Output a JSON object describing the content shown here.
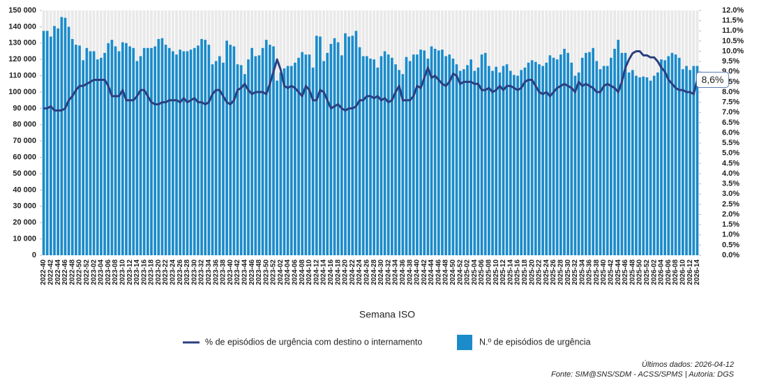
{
  "chart_data": {
    "type": "bar-line",
    "x_label": "Semana ISO",
    "footnotes": [
      "Últimos dados: 2026-04-12",
      "Fonte: SIM@SNS/SDM - ACSS/SPMS | Autoria: DGS"
    ],
    "categories": [
      "2022-40",
      null,
      "2022-42",
      null,
      "2022-44",
      null,
      "2022-46",
      null,
      "2022-48",
      null,
      "2022-50",
      null,
      "2022-52",
      null,
      "2023-02",
      null,
      "2023-04",
      null,
      "2023-06",
      null,
      "2023-08",
      null,
      "2023-10",
      null,
      "2023-12",
      null,
      "2023-14",
      null,
      "2023-16",
      null,
      "2023-18",
      null,
      "2023-20",
      null,
      "2023-22",
      null,
      "2023-24",
      null,
      "2023-26",
      null,
      "2023-28",
      null,
      "2023-30",
      null,
      "2023-32",
      null,
      "2023-34",
      null,
      "2023-36",
      null,
      "2023-38",
      null,
      "2023-40",
      null,
      "2023-42",
      null,
      "2023-44",
      null,
      "2023-46",
      null,
      "2023-48",
      null,
      "2023-50",
      null,
      "2023-52",
      null,
      "2024-02",
      null,
      "2024-04",
      null,
      "2024-06",
      null,
      "2024-08",
      null,
      "2024-10",
      null,
      "2024-12",
      null,
      "2024-14",
      null,
      "2024-16",
      null,
      "2024-18",
      null,
      "2024-20",
      null,
      "2024-22",
      null,
      "2024-24",
      null,
      "2024-26",
      null,
      "2024-28",
      null,
      "2024-30",
      null,
      "2024-32",
      null,
      "2024-34",
      null,
      "2024-36",
      null,
      "2024-38",
      null,
      "2024-40",
      null,
      "2024-42",
      null,
      "2024-44",
      null,
      "2024-46",
      null,
      "2024-48",
      null,
      "2024-50",
      null,
      "2024-52",
      null,
      "2025-02",
      null,
      "2025-04",
      null,
      "2025-06",
      null,
      "2025-08",
      null,
      "2025-10",
      null,
      "2025-12",
      null,
      "2025-14",
      null,
      "2025-16",
      null,
      "2025-18",
      null,
      "2025-20",
      null,
      "2025-22",
      null,
      "2025-24",
      null,
      "2025-26",
      null,
      "2025-28",
      null,
      "2025-30",
      null,
      "2025-32",
      null,
      "2025-34",
      null,
      "2025-36",
      null,
      "2025-38",
      null,
      "2025-40",
      null,
      "2025-42",
      null,
      "2025-44",
      null,
      "2025-46",
      null,
      "2025-48",
      null,
      "2025-50",
      null,
      "2025-52",
      null,
      "2026-02",
      null,
      "2026-04",
      null,
      "2026-06",
      null,
      "2026-08",
      null,
      "2026-10",
      null,
      "2026-12",
      null,
      "2026-14"
    ],
    "series": [
      {
        "name": "% de episódios de urgência com destino o internamento",
        "type": "line",
        "axis": "y2",
        "color": "#2b3f7f",
        "values": [
          7.2,
          7.2,
          7.3,
          7.1,
          7.1,
          7.1,
          7.2,
          7.6,
          7.8,
          8.1,
          8.3,
          8.3,
          8.4,
          8.5,
          8.6,
          8.6,
          8.6,
          8.6,
          8.3,
          7.8,
          7.8,
          7.8,
          8.1,
          7.6,
          7.6,
          7.6,
          7.8,
          8.1,
          8.1,
          7.8,
          7.5,
          7.4,
          7.4,
          7.5,
          7.5,
          7.6,
          7.6,
          7.6,
          7.5,
          7.7,
          7.5,
          7.6,
          7.7,
          7.5,
          7.5,
          7.4,
          7.5,
          7.9,
          8.1,
          8.1,
          7.8,
          7.5,
          7.4,
          7.6,
          8.1,
          8.2,
          8.4,
          8.1,
          7.9,
          8.0,
          8.0,
          8.0,
          7.9,
          8.4,
          9.0,
          9.6,
          9.1,
          8.3,
          8.2,
          8.3,
          8.2,
          8.0,
          7.8,
          8.3,
          8.1,
          7.6,
          7.6,
          8.1,
          8.0,
          7.6,
          7.2,
          7.3,
          7.4,
          7.2,
          7.1,
          7.2,
          7.2,
          7.3,
          7.6,
          7.6,
          7.8,
          7.8,
          7.7,
          7.8,
          7.6,
          7.7,
          7.5,
          7.6,
          8.0,
          8.3,
          7.6,
          7.6,
          7.6,
          7.8,
          8.3,
          8.2,
          8.7,
          9.2,
          8.7,
          8.8,
          8.6,
          8.4,
          8.3,
          8.5,
          8.9,
          8.8,
          8.4,
          8.5,
          8.5,
          8.5,
          8.4,
          8.4,
          8.1,
          8.1,
          8.2,
          8.0,
          8.1,
          8.3,
          8.1,
          8.3,
          8.3,
          8.2,
          8.1,
          8.2,
          8.5,
          8.6,
          8.6,
          8.3,
          8.0,
          7.9,
          8.0,
          7.8,
          8.0,
          8.2,
          8.3,
          8.4,
          8.3,
          8.2,
          8.0,
          8.5,
          8.3,
          8.4,
          8.3,
          8.2,
          8.0,
          8.0,
          8.3,
          8.4,
          8.3,
          8.2,
          8.0,
          8.5,
          9.2,
          9.6,
          9.9,
          10.0,
          10.0,
          9.8,
          9.8,
          9.7,
          9.7,
          9.5,
          9.2,
          9.0,
          8.6,
          8.4,
          8.2,
          8.1,
          8.1,
          8.0,
          8.0,
          7.9,
          8.6
        ],
        "value_labels": [
          null,
          null,
          null,
          null,
          null,
          null,
          null,
          null,
          null,
          null,
          null,
          null,
          null,
          null,
          null,
          null,
          null,
          null,
          null,
          null,
          null,
          null,
          null,
          null,
          null,
          null,
          null,
          null,
          null,
          null,
          null,
          null,
          null,
          null,
          null,
          null,
          null,
          null,
          null,
          null,
          null,
          null,
          null,
          null,
          null,
          null,
          null,
          null,
          null,
          null,
          null,
          null,
          null,
          null,
          null,
          null,
          null,
          null,
          null,
          null,
          null,
          null,
          null,
          null,
          null,
          null,
          null,
          null,
          null,
          null,
          null,
          null,
          null,
          null,
          null,
          null,
          null,
          null,
          null,
          null,
          null,
          null,
          null,
          null,
          null,
          null,
          null,
          null,
          null,
          null,
          null,
          null,
          null,
          null,
          null,
          null,
          null,
          null,
          null,
          null,
          null,
          null,
          null,
          null,
          null,
          null,
          null,
          null,
          null,
          null,
          null,
          null,
          null,
          null,
          null,
          null,
          null,
          null,
          null,
          null,
          null,
          null,
          null,
          null,
          null,
          null,
          null,
          null,
          null,
          null,
          null,
          null,
          null,
          null,
          null,
          null,
          null,
          null,
          null,
          null,
          null,
          null,
          null,
          null,
          null,
          null,
          null,
          null,
          null,
          null,
          null,
          null,
          null,
          null,
          null,
          null,
          null,
          null,
          null,
          null,
          null,
          null,
          null,
          null,
          null,
          null,
          null,
          null,
          null,
          null,
          null,
          null,
          null,
          null,
          null,
          null,
          null,
          null,
          null,
          null,
          null,
          null,
          "8,6%"
        ]
      },
      {
        "name": "N.º de episódios de urgência",
        "type": "bar",
        "color": "#1b8bca",
        "values": [
          137500,
          137500,
          134000,
          140500,
          139000,
          146000,
          145500,
          140000,
          132500,
          129000,
          128500,
          119500,
          127000,
          125000,
          125000,
          120000,
          121000,
          124000,
          130000,
          132000,
          128000,
          125000,
          130500,
          130000,
          128000,
          127000,
          119000,
          122000,
          127000,
          127000,
          127000,
          128000,
          132500,
          133000,
          129000,
          127000,
          125000,
          123000,
          126000,
          125000,
          125000,
          126000,
          127000,
          128500,
          132500,
          132000,
          129000,
          117000,
          119000,
          122000,
          118000,
          131500,
          129000,
          128000,
          117000,
          116500,
          111000,
          120000,
          127000,
          122000,
          122500,
          127000,
          132000,
          129000,
          128000,
          107000,
          112000,
          114500,
          116000,
          116000,
          118000,
          121000,
          124500,
          123000,
          123000,
          115000,
          134500,
          134000,
          119000,
          124000,
          129500,
          133000,
          130500,
          122500,
          136000,
          134000,
          134500,
          137500,
          127500,
          122000,
          122000,
          120500,
          120000,
          115000,
          122000,
          125000,
          123000,
          121000,
          117000,
          113500,
          111000,
          121500,
          119000,
          123000,
          123000,
          126000,
          125500,
          120500,
          128000,
          126500,
          125500,
          126000,
          122000,
          123000,
          120500,
          117000,
          113000,
          114000,
          116500,
          120000,
          113000,
          115000,
          123000,
          124000,
          116000,
          113000,
          115500,
          112000,
          116000,
          117000,
          113000,
          110500,
          110000,
          113500,
          115000,
          118000,
          119500,
          118500,
          117000,
          116000,
          118000,
          122500,
          121000,
          120000,
          123000,
          126500,
          124000,
          118000,
          110000,
          112000,
          121000,
          124000,
          124500,
          127000,
          119000,
          114000,
          116000,
          116000,
          121000,
          126500,
          132000,
          124000,
          124000,
          112000,
          113500,
          110000,
          109000,
          109500,
          109000,
          107000,
          110000,
          112000,
          120000,
          119500,
          122000,
          124000,
          123000,
          121000,
          114000,
          116000,
          113500,
          116000,
          116000
        ]
      }
    ],
    "ylim": [
      0,
      150000
    ],
    "yticks": [
      {
        "value": 0,
        "label": "0"
      },
      {
        "value": 10000,
        "label": "10 000"
      },
      {
        "value": 20000,
        "label": "20 000"
      },
      {
        "value": 30000,
        "label": "30 000"
      },
      {
        "value": 40000,
        "label": "40 000"
      },
      {
        "value": 50000,
        "label": "50 000"
      },
      {
        "value": 60000,
        "label": "60 000"
      },
      {
        "value": 70000,
        "label": "70 000"
      },
      {
        "value": 80000,
        "label": "80 000"
      },
      {
        "value": 90000,
        "label": "90 000"
      },
      {
        "value": 100000,
        "label": "100 000"
      },
      {
        "value": 110000,
        "label": "110 000"
      },
      {
        "value": 120000,
        "label": "120 000"
      },
      {
        "value": 130000,
        "label": "130 000"
      },
      {
        "value": 140000,
        "label": "140 000"
      },
      {
        "value": 150000,
        "label": "150 000"
      }
    ],
    "y2lim": [
      0,
      12
    ],
    "y2ticks": [
      {
        "value": 0,
        "label": "0.0%"
      },
      {
        "value": 0.5,
        "label": "0.5%"
      },
      {
        "value": 1,
        "label": "1.0%"
      },
      {
        "value": 1.5,
        "label": "1.5%"
      },
      {
        "value": 2,
        "label": "2.0%"
      },
      {
        "value": 2.5,
        "label": "2.5%"
      },
      {
        "value": 3,
        "label": "3.0%"
      },
      {
        "value": 3.5,
        "label": "3.5%"
      },
      {
        "value": 4,
        "label": "4.0%"
      },
      {
        "value": 4.5,
        "label": "4.5%"
      },
      {
        "value": 5,
        "label": "5.0%"
      },
      {
        "value": 5.5,
        "label": "5.5%"
      },
      {
        "value": 6,
        "label": "6.0%"
      },
      {
        "value": 6.5,
        "label": "6.5%"
      },
      {
        "value": 7,
        "label": "7.0%"
      },
      {
        "value": 7.5,
        "label": "7.5%"
      },
      {
        "value": 8,
        "label": "8.0%"
      },
      {
        "value": 8.5,
        "label": "8.5%"
      },
      {
        "value": 9,
        "label": "9.0%"
      },
      {
        "value": 9.5,
        "label": "9.5%"
      },
      {
        "value": 10,
        "label": "10.0%"
      },
      {
        "value": 10.5,
        "label": "10.5%"
      },
      {
        "value": 11,
        "label": "11.0%"
      },
      {
        "value": 11.5,
        "label": "11.5%"
      },
      {
        "value": 12,
        "label": "12.0%"
      }
    ],
    "legend": "bottom"
  }
}
